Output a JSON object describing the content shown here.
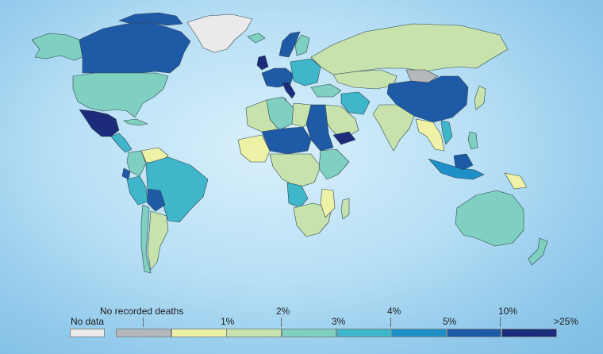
{
  "legend": {
    "no_data_label": "No data",
    "no_data_color": "#eaeaea",
    "no_deaths_label": "No recorded deaths",
    "no_deaths_color": "#b4b8ba",
    "bins": [
      {
        "label": "1%",
        "color": "#eef2a6"
      },
      {
        "label": "2%",
        "color": "#c7e2ac"
      },
      {
        "label": "3%",
        "color": "#7fd0c0"
      },
      {
        "label": "4%",
        "color": "#3fb6c9"
      },
      {
        "label": "5%",
        "color": "#1f8fc7"
      },
      {
        "label": "10%",
        "color": "#1f5aa6"
      },
      {
        "label": ">25%",
        "color": "#1c2c7a"
      }
    ]
  },
  "colors": {
    "no_data": "#eaeaea",
    "no_deaths": "#b4b8ba",
    "c1": "#eef2a6",
    "c2": "#c7e2ac",
    "c3": "#7fd0c0",
    "c4": "#3fb6c9",
    "c5": "#1f8fc7",
    "c10": "#1f5aa6",
    "c25": "#1c2c7a"
  }
}
